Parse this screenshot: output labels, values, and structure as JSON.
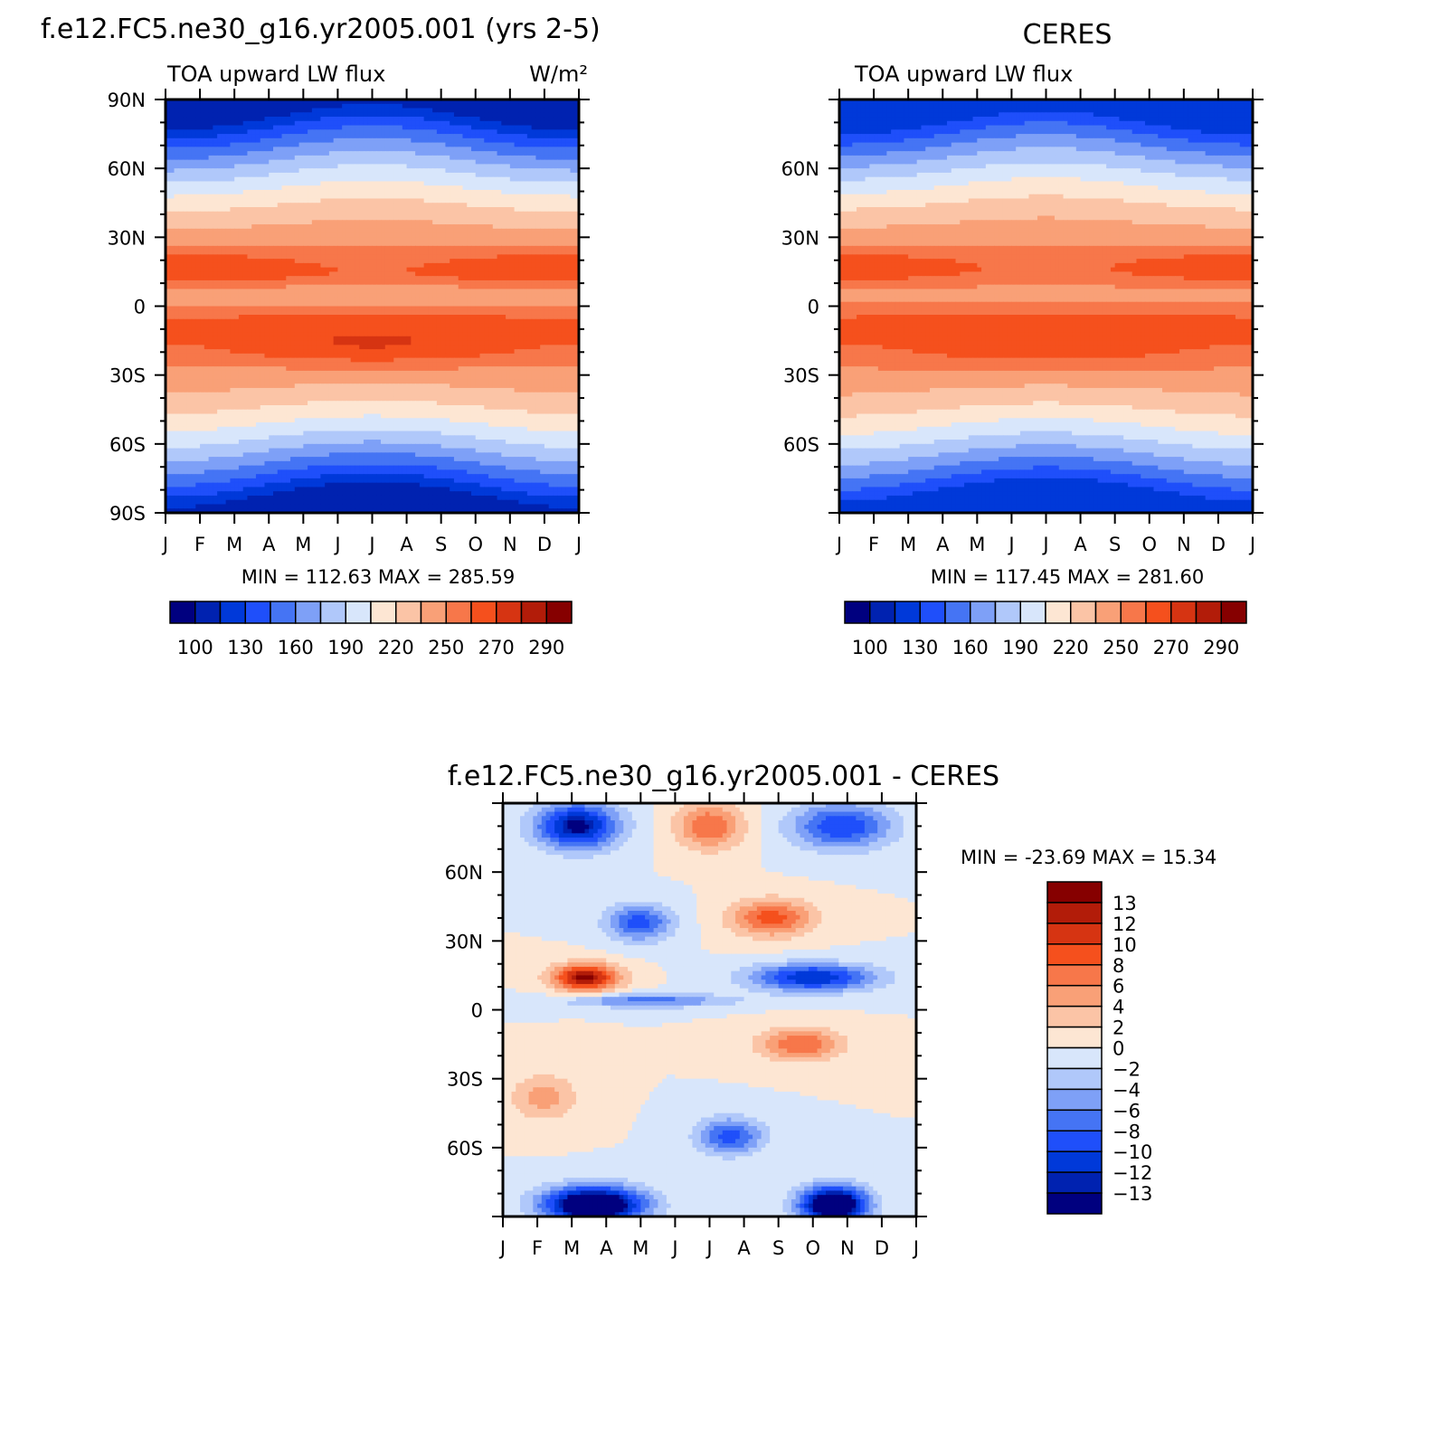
{
  "chart_data": [
    {
      "type": "heatmap",
      "title": "f.e12.FC5.ne30_g16.yr2005.001 (yrs 2-5)",
      "subtitle_left": "TOA upward LW flux",
      "units": "W/m²",
      "x_ticks": [
        "J",
        "F",
        "M",
        "A",
        "M",
        "J",
        "J",
        "A",
        "S",
        "O",
        "N",
        "D",
        "J"
      ],
      "y_ticks": [
        "90N",
        "60N",
        "30N",
        "0",
        "30S",
        "60S",
        "90S"
      ],
      "min_max_label": "MIN = 112.63 MAX = 285.59",
      "colorbar_labels": [
        "100",
        "130",
        "160",
        "190",
        "220",
        "250",
        "270",
        "290"
      ],
      "levels": [
        100,
        115,
        130,
        145,
        160,
        175,
        190,
        205,
        220,
        235,
        250,
        260,
        270,
        280,
        290
      ],
      "min": 112.63,
      "max": 285.59
    },
    {
      "type": "heatmap",
      "title": "CERES",
      "subtitle_left": "TOA upward LW flux",
      "x_ticks": [
        "J",
        "F",
        "M",
        "A",
        "M",
        "J",
        "J",
        "A",
        "S",
        "O",
        "N",
        "D",
        "J"
      ],
      "y_ticks": [
        "60N",
        "30N",
        "0",
        "30S",
        "60S"
      ],
      "min_max_label": "MIN = 117.45 MAX = 281.60",
      "colorbar_labels": [
        "100",
        "130",
        "160",
        "190",
        "220",
        "250",
        "270",
        "290"
      ],
      "levels": [
        100,
        115,
        130,
        145,
        160,
        175,
        190,
        205,
        220,
        235,
        250,
        260,
        270,
        280,
        290
      ],
      "min": 117.45,
      "max": 281.6
    },
    {
      "type": "heatmap",
      "title": "f.e12.FC5.ne30_g16.yr2005.001 - CERES",
      "x_ticks": [
        "J",
        "F",
        "M",
        "A",
        "M",
        "J",
        "J",
        "A",
        "S",
        "O",
        "N",
        "D",
        "J"
      ],
      "y_ticks": [
        "60N",
        "30N",
        "0",
        "30S",
        "60S"
      ],
      "min_max_label": "MIN = -23.69 MAX = 15.34",
      "colorbar_labels": [
        "13",
        "12",
        "10",
        "8",
        "6",
        "4",
        "2",
        "0",
        "-2",
        "-4",
        "-6",
        "-8",
        "-10",
        "-12",
        "-13"
      ],
      "levels": [
        -13,
        -12,
        -10,
        -8,
        -6,
        -4,
        -2,
        0,
        2,
        4,
        6,
        8,
        10,
        12,
        13
      ],
      "min": -23.69,
      "max": 15.34
    }
  ],
  "palette": [
    "#00007f",
    "#0022b0",
    "#0039d9",
    "#1f4ffa",
    "#4574f4",
    "#7ea0f7",
    "#b0c8fa",
    "#d8e6fb",
    "#fde6d3",
    "#fbc4a6",
    "#f9a077",
    "#f7774a",
    "#f5501d",
    "#d63412",
    "#b21c09",
    "#860000"
  ],
  "diff_palette": [
    "#00007f",
    "#0022b0",
    "#0039d9",
    "#1f4ffa",
    "#4574f4",
    "#7ea0f7",
    "#b0c8fa",
    "#d8e6fb",
    "#fde6d3",
    "#fbc4a6",
    "#f9a077",
    "#f7774a",
    "#f5501d",
    "#d63412",
    "#b21c09",
    "#860000"
  ]
}
